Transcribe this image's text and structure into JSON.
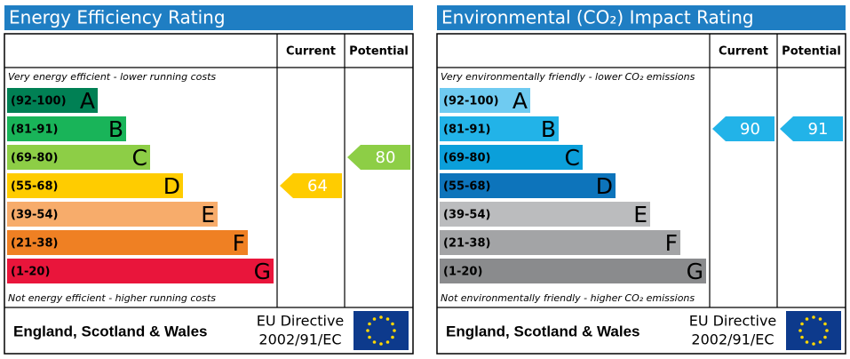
{
  "chart_data": [
    {
      "type": "epc",
      "title": "Energy Efficiency Rating",
      "columns": [
        "Current",
        "Potential"
      ],
      "top_note": "Very energy efficient - lower running costs",
      "bottom_note": "Not energy efficient - higher running costs",
      "bands": [
        {
          "label": "(92-100)",
          "letter": "A",
          "color": "#008054"
        },
        {
          "label": "(81-91)",
          "letter": "B",
          "color": "#19b459"
        },
        {
          "label": "(69-80)",
          "letter": "C",
          "color": "#8dce46"
        },
        {
          "label": "(55-68)",
          "letter": "D",
          "color": "#ffcc00"
        },
        {
          "label": "(39-54)",
          "letter": "E",
          "color": "#f7ac6b"
        },
        {
          "label": "(21-38)",
          "letter": "F",
          "color": "#ef8023"
        },
        {
          "label": "(1-20)",
          "letter": "G",
          "color": "#e9153b"
        }
      ],
      "current": 64,
      "potential": 80,
      "region": "England, Scotland & Wales",
      "directive": [
        "EU Directive",
        "2002/91/EC"
      ]
    },
    {
      "type": "epc",
      "title": "Environmental (CO₂) Impact Rating",
      "columns": [
        "Current",
        "Potential"
      ],
      "top_note": "Very environmentally friendly - lower CO₂ emissions",
      "bottom_note": "Not environmentally friendly - higher CO₂ emissions",
      "bands": [
        {
          "label": "(92-100)",
          "letter": "A",
          "color": "#6fcbf1"
        },
        {
          "label": "(81-91)",
          "letter": "B",
          "color": "#22b3e8"
        },
        {
          "label": "(69-80)",
          "letter": "C",
          "color": "#0b9fda"
        },
        {
          "label": "(55-68)",
          "letter": "D",
          "color": "#0d74bb"
        },
        {
          "label": "(39-54)",
          "letter": "E",
          "color": "#bbbcbe"
        },
        {
          "label": "(21-38)",
          "letter": "F",
          "color": "#a3a4a6"
        },
        {
          "label": "(1-20)",
          "letter": "G",
          "color": "#8a8b8d"
        }
      ],
      "current": 90,
      "potential": 91,
      "region": "England, Scotland & Wales",
      "directive": [
        "EU Directive",
        "2002/91/EC"
      ]
    }
  ]
}
